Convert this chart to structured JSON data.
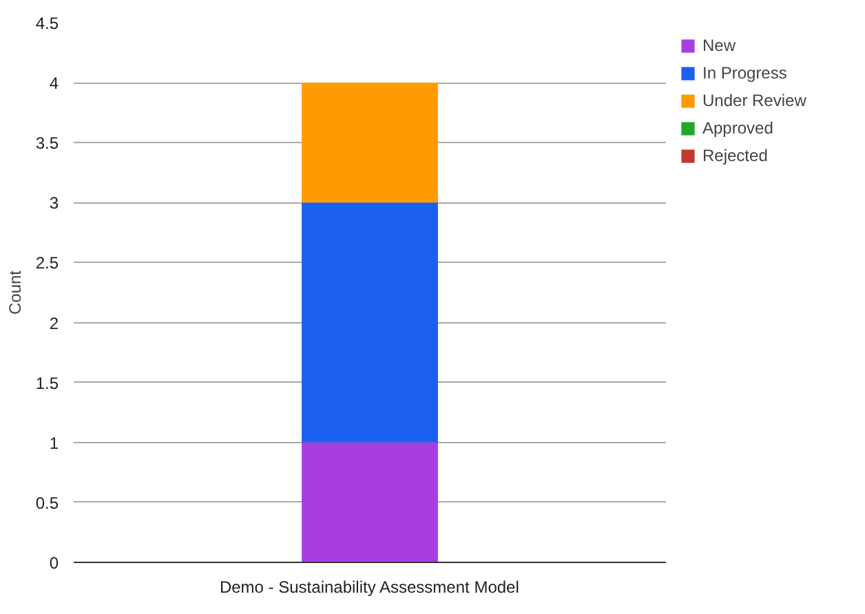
{
  "chart_data": {
    "type": "bar",
    "stacked": true,
    "categories": [
      "Demo - Sustainability Assessment Model"
    ],
    "ylabel": "Count",
    "series": [
      {
        "name": "New",
        "color": "#a83ee0",
        "values": [
          1
        ]
      },
      {
        "name": "In Progress",
        "color": "#1a5ff0",
        "values": [
          2
        ]
      },
      {
        "name": "Under Review",
        "color": "#ff9a00",
        "values": [
          1
        ]
      },
      {
        "name": "Approved",
        "color": "#22a82a",
        "values": [
          0
        ]
      },
      {
        "name": "Rejected",
        "color": "#c0392b",
        "values": [
          0
        ]
      }
    ],
    "ylim": [
      0,
      4.5
    ],
    "yticks": [
      0,
      0.5,
      1,
      1.5,
      2,
      2.5,
      3,
      3.5,
      4,
      4.5
    ],
    "grid": "y",
    "legend": "top right"
  }
}
